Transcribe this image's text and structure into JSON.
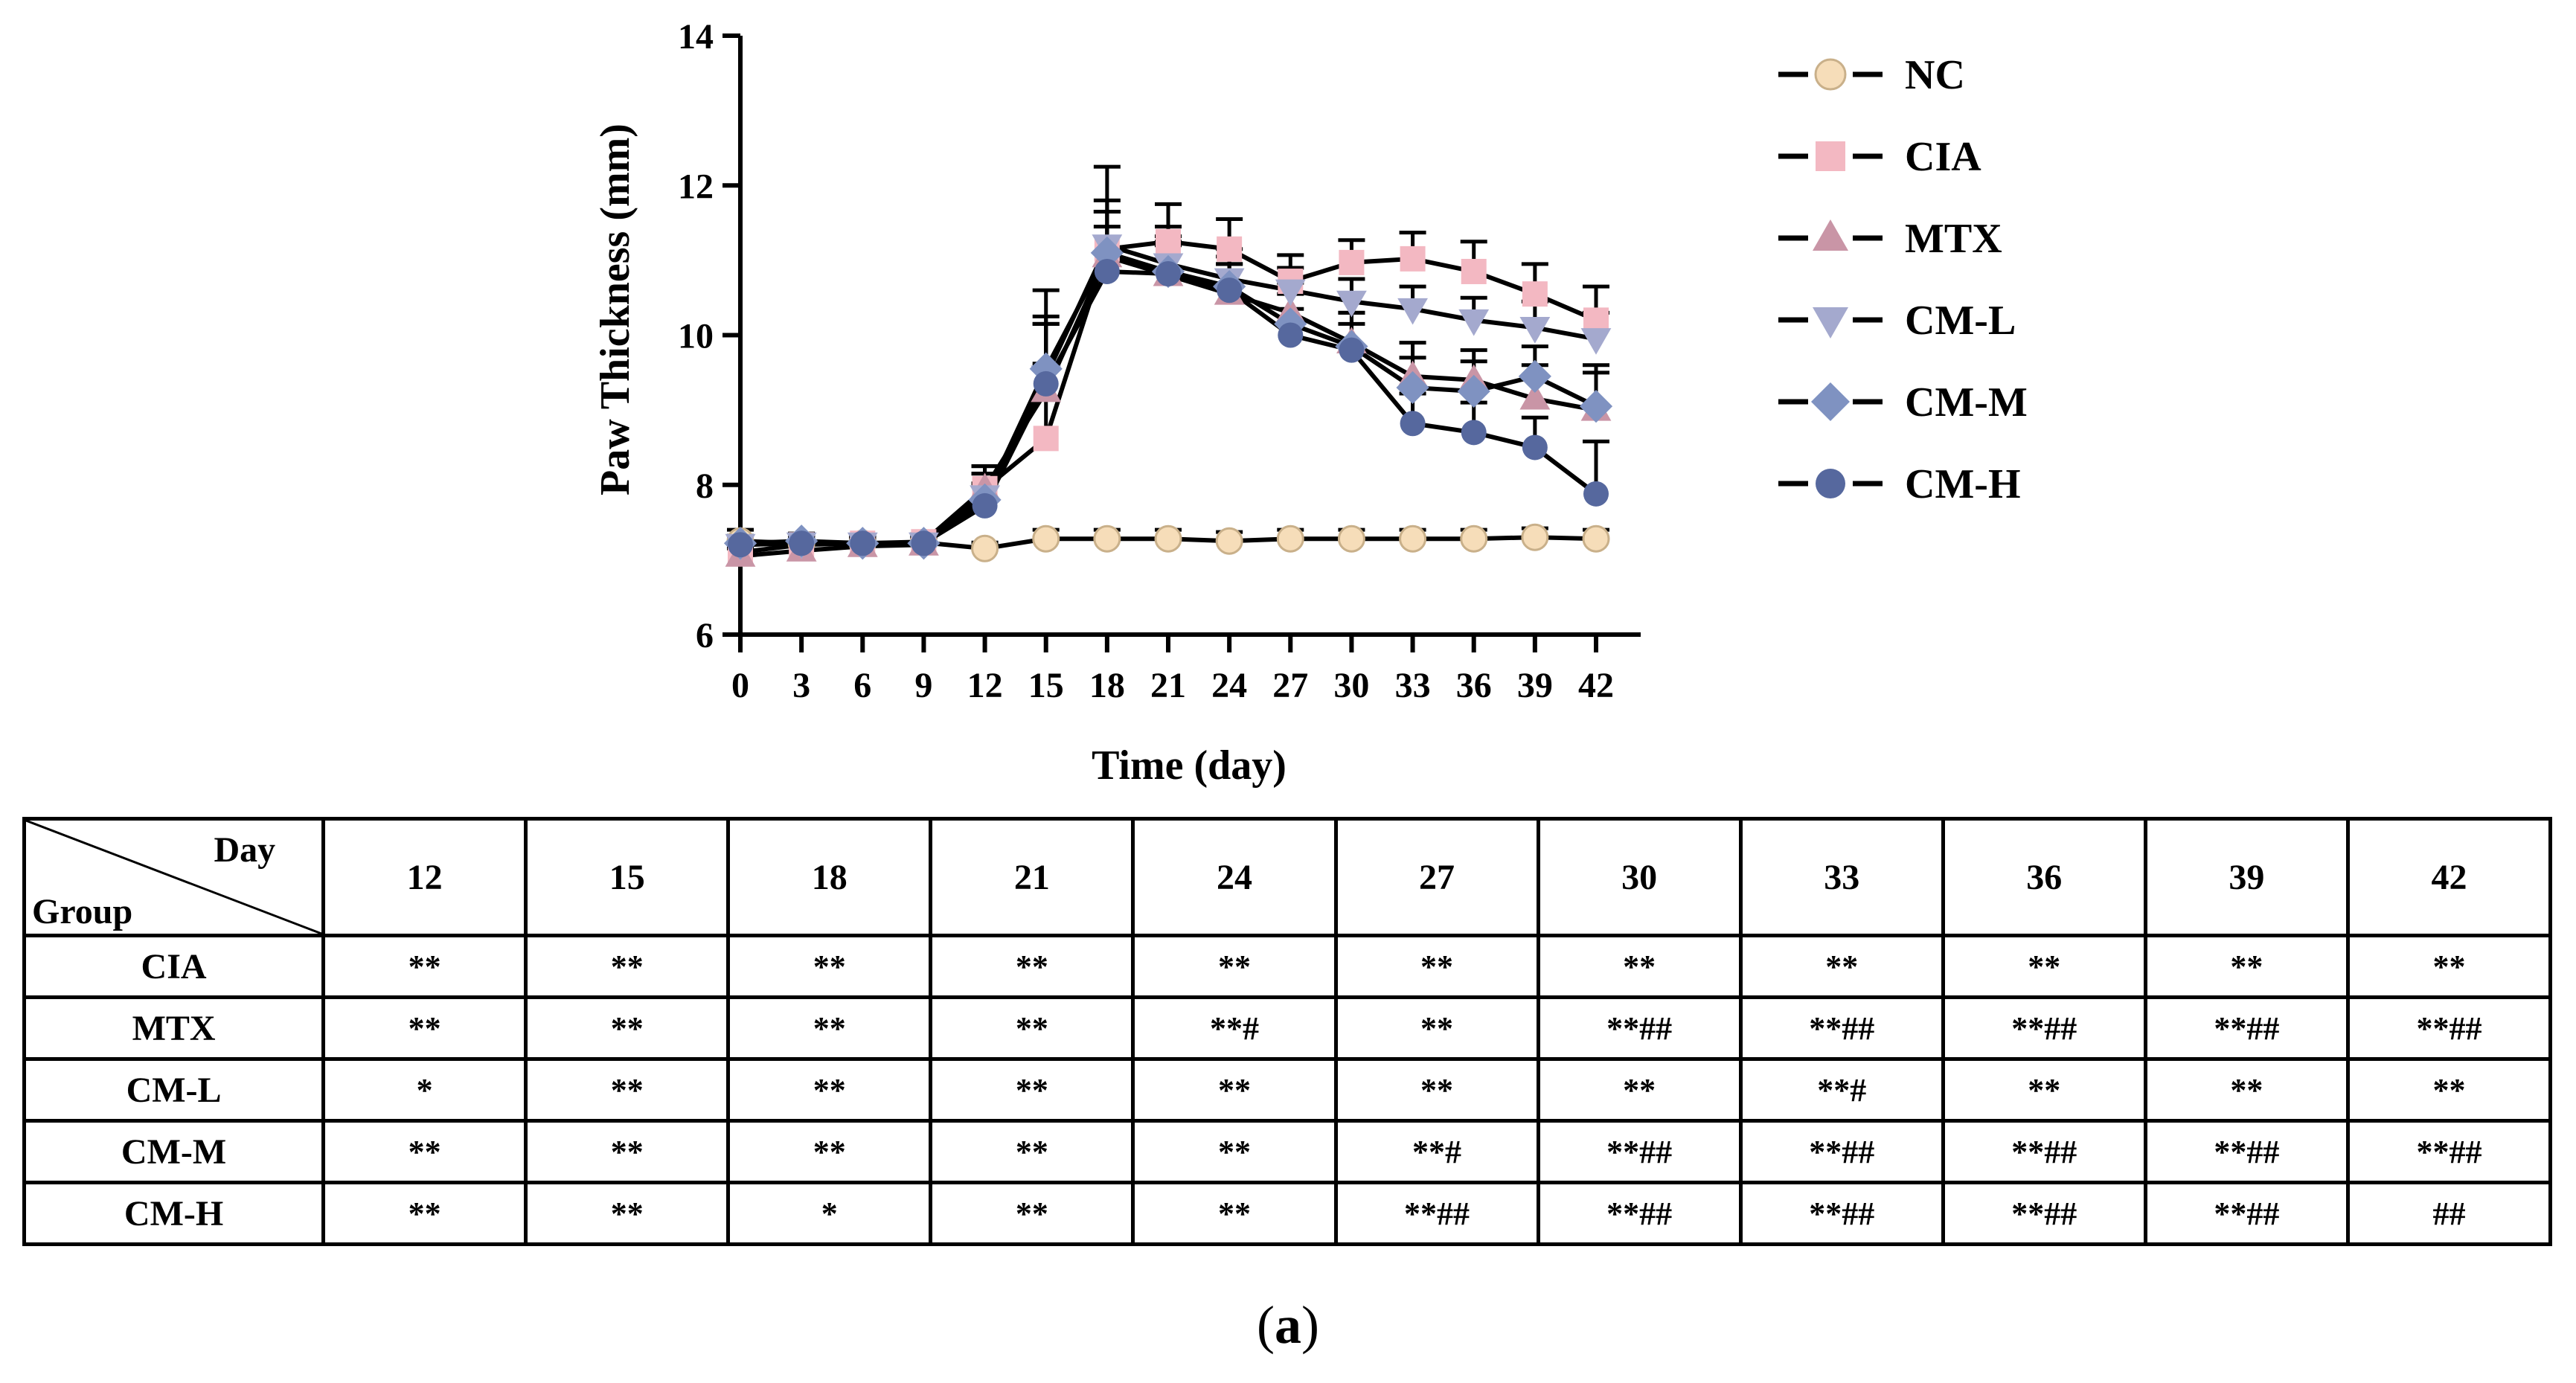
{
  "chart_data": {
    "type": "line",
    "xlabel": "Time (day)",
    "ylabel": "Paw Thickness (mm)",
    "xlim": [
      0,
      42
    ],
    "ylim": [
      6,
      14
    ],
    "xticks": [
      0,
      3,
      6,
      9,
      12,
      15,
      18,
      21,
      24,
      27,
      30,
      33,
      36,
      39,
      42
    ],
    "yticks": [
      6,
      8,
      10,
      12,
      14
    ],
    "x": [
      0,
      3,
      6,
      9,
      12,
      15,
      18,
      21,
      24,
      27,
      30,
      33,
      36,
      39,
      42
    ],
    "legend_position": "right",
    "series": [
      {
        "name": "NC",
        "marker": "circle",
        "color": "#F6DDB9",
        "values": [
          7.25,
          7.22,
          7.22,
          7.23,
          7.15,
          7.28,
          7.28,
          7.28,
          7.25,
          7.28,
          7.28,
          7.28,
          7.28,
          7.3,
          7.28
        ],
        "errors": [
          0.15,
          0.1,
          0.08,
          0.08,
          0.08,
          0.12,
          0.12,
          0.12,
          0.12,
          0.12,
          0.12,
          0.12,
          0.12,
          0.12,
          0.12
        ]
      },
      {
        "name": "CIA",
        "marker": "square",
        "color": "#F3B8C2",
        "values": [
          7.1,
          7.2,
          7.22,
          7.24,
          7.95,
          8.62,
          11.15,
          11.25,
          11.15,
          10.72,
          10.97,
          11.02,
          10.85,
          10.55,
          10.2
        ],
        "errors": [
          0.1,
          0.1,
          0.1,
          0.1,
          0.3,
          1.0,
          1.1,
          0.5,
          0.4,
          0.35,
          0.3,
          0.35,
          0.4,
          0.4,
          0.45
        ]
      },
      {
        "name": "MTX",
        "marker": "triangle-up",
        "color": "#C995A6",
        "values": [
          7.05,
          7.12,
          7.18,
          7.2,
          7.95,
          9.25,
          11.05,
          10.8,
          10.55,
          10.3,
          9.9,
          9.45,
          9.4,
          9.15,
          9.0
        ],
        "errors": [
          0.1,
          0.1,
          0.1,
          0.1,
          0.3,
          0.9,
          0.6,
          0.4,
          0.4,
          0.4,
          0.4,
          0.45,
          0.4,
          0.45,
          0.5
        ]
      },
      {
        "name": "CM-L",
        "marker": "triangle-down",
        "color": "#A4A9CE",
        "values": [
          7.2,
          7.22,
          7.22,
          7.22,
          7.85,
          9.45,
          11.2,
          10.95,
          10.75,
          10.6,
          10.45,
          10.35,
          10.2,
          10.1,
          9.95
        ],
        "errors": [
          0.1,
          0.1,
          0.1,
          0.1,
          0.3,
          0.8,
          0.6,
          0.5,
          0.4,
          0.3,
          0.3,
          0.3,
          0.3,
          0.35,
          0.35
        ]
      },
      {
        "name": "CM-M",
        "marker": "diamond",
        "color": "#7F92C1",
        "values": [
          7.22,
          7.25,
          7.22,
          7.22,
          7.8,
          9.55,
          11.1,
          10.85,
          10.65,
          10.15,
          9.85,
          9.3,
          9.25,
          9.45,
          9.05
        ],
        "errors": [
          0.1,
          0.1,
          0.1,
          0.1,
          0.35,
          1.05,
          0.55,
          0.4,
          0.4,
          0.4,
          0.45,
          0.4,
          0.4,
          0.4,
          0.55
        ]
      },
      {
        "name": "CM-H",
        "marker": "circle",
        "color": "#56689E",
        "values": [
          7.2,
          7.22,
          7.22,
          7.22,
          7.72,
          9.35,
          10.85,
          10.82,
          10.6,
          10.0,
          9.8,
          8.82,
          8.7,
          8.5,
          7.88
        ],
        "errors": [
          0.1,
          0.1,
          0.1,
          0.1,
          0.3,
          0.8,
          0.6,
          0.5,
          0.35,
          0.35,
          0.35,
          0.4,
          0.4,
          0.4,
          0.7
        ]
      }
    ]
  },
  "table": {
    "corner_day": "Day",
    "corner_group": "Group",
    "days": [
      "12",
      "15",
      "18",
      "21",
      "24",
      "27",
      "30",
      "33",
      "36",
      "39",
      "42"
    ],
    "rows": [
      {
        "group": "CIA",
        "cells": [
          "**",
          "**",
          "**",
          "**",
          "**",
          "**",
          "**",
          "**",
          "**",
          "**",
          "**"
        ]
      },
      {
        "group": "MTX",
        "cells": [
          "**",
          "**",
          "**",
          "**",
          "**#",
          "**",
          "**##",
          "**##",
          "**##",
          "**##",
          "**##"
        ]
      },
      {
        "group": "CM-L",
        "cells": [
          "*",
          "**",
          "**",
          "**",
          "**",
          "**",
          "**",
          "**#",
          "**",
          "**",
          "**"
        ]
      },
      {
        "group": "CM-M",
        "cells": [
          "**",
          "**",
          "**",
          "**",
          "**",
          "**#",
          "**##",
          "**##",
          "**##",
          "**##",
          "**##"
        ]
      },
      {
        "group": "CM-H",
        "cells": [
          "**",
          "**",
          "*",
          "**",
          "**",
          "**##",
          "**##",
          "**##",
          "**##",
          "**##",
          "##"
        ]
      }
    ]
  },
  "caption": {
    "open": "(",
    "label": "a",
    "close": ")"
  }
}
